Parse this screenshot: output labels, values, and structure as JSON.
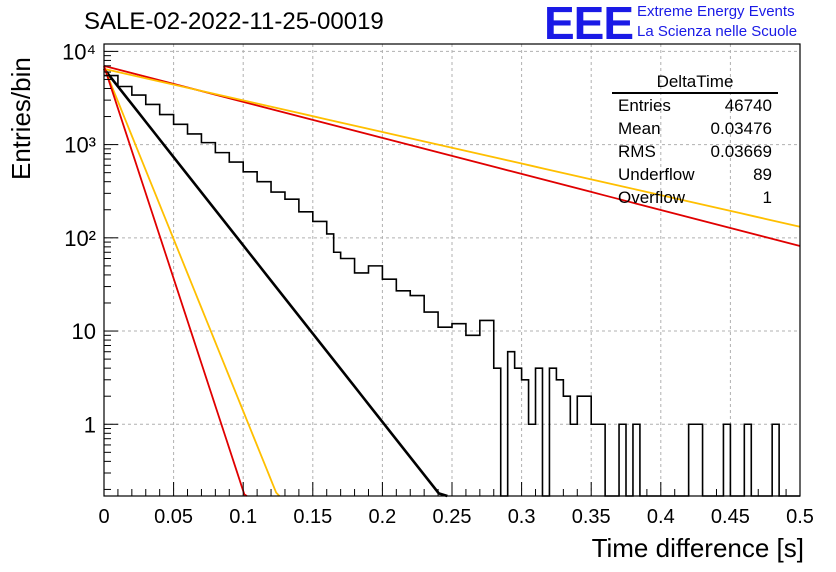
{
  "header": {
    "title": "SALE-02-2022-11-25-00019",
    "logo_text": "EEE",
    "logo_line1": "Extreme Energy Events",
    "logo_line2": "La Scienza nelle Scuole"
  },
  "stats_box": {
    "title": "DeltaTime",
    "rows": [
      {
        "label": "Entries",
        "value": "46740"
      },
      {
        "label": "Mean",
        "value": "0.03476"
      },
      {
        "label": "RMS",
        "value": "0.03669"
      },
      {
        "label": "Underflow",
        "value": "89"
      },
      {
        "label": "Overflow",
        "value": "1"
      }
    ]
  },
  "colors": {
    "histogram": "#000000",
    "fit": "#000000",
    "red_curves": "#e00000",
    "orange_curves": "#ffbf00",
    "grid": "#b0b0b0"
  },
  "chart_data": {
    "type": "line",
    "title": "SALE-02-2022-11-25-00019",
    "xlabel": "Time difference [s]",
    "ylabel": "Entries/bin",
    "xlim": [
      0,
      0.5
    ],
    "ylim": [
      0.17,
      12000
    ],
    "yscale": "log",
    "grid": true,
    "x_ticks": [
      "0",
      "0.05",
      "0.1",
      "0.15",
      "0.2",
      "0.25",
      "0.3",
      "0.35",
      "0.4",
      "0.45",
      "0.5"
    ],
    "y_ticks": [
      "1",
      "10",
      "10²",
      "10³",
      "10⁴"
    ],
    "histogram": {
      "name": "DeltaTime",
      "points": [
        [
          0.0,
          5500
        ],
        [
          0.01,
          4200
        ],
        [
          0.02,
          3400
        ],
        [
          0.03,
          2700
        ],
        [
          0.04,
          2100
        ],
        [
          0.05,
          1650
        ],
        [
          0.06,
          1300
        ],
        [
          0.07,
          1050
        ],
        [
          0.08,
          820
        ],
        [
          0.09,
          650
        ],
        [
          0.1,
          510
        ],
        [
          0.11,
          400
        ],
        [
          0.12,
          310
        ],
        [
          0.13,
          260
        ],
        [
          0.14,
          190
        ],
        [
          0.15,
          150
        ],
        [
          0.16,
          110
        ],
        [
          0.165,
          70
        ],
        [
          0.17,
          60
        ],
        [
          0.18,
          42
        ],
        [
          0.19,
          50
        ],
        [
          0.2,
          36
        ],
        [
          0.21,
          27
        ],
        [
          0.22,
          24
        ],
        [
          0.23,
          16
        ],
        [
          0.24,
          11
        ],
        [
          0.25,
          12
        ],
        [
          0.26,
          9
        ],
        [
          0.27,
          13
        ],
        [
          0.28,
          4
        ],
        [
          0.285,
          0.1
        ],
        [
          0.29,
          6
        ],
        [
          0.295,
          4
        ],
        [
          0.3,
          3
        ],
        [
          0.305,
          1
        ],
        [
          0.31,
          4
        ],
        [
          0.315,
          0.1
        ],
        [
          0.32,
          4
        ],
        [
          0.325,
          3
        ],
        [
          0.33,
          2
        ],
        [
          0.335,
          1
        ],
        [
          0.34,
          2
        ],
        [
          0.35,
          1
        ],
        [
          0.36,
          0.1
        ],
        [
          0.37,
          1
        ],
        [
          0.375,
          0.1
        ],
        [
          0.38,
          1
        ],
        [
          0.385,
          0.1
        ],
        [
          0.42,
          1
        ],
        [
          0.43,
          0.1
        ],
        [
          0.445,
          1
        ],
        [
          0.45,
          0.1
        ],
        [
          0.46,
          1
        ],
        [
          0.465,
          0.1
        ],
        [
          0.48,
          1
        ],
        [
          0.485,
          0.1
        ],
        [
          0.5,
          0.1
        ]
      ]
    },
    "fits": [
      {
        "color": "black",
        "y0": 6500,
        "slope_per_s": 43.6,
        "x_range": [
          0,
          0.37
        ]
      },
      {
        "color": "red",
        "y0": 7000,
        "slope_per_s": 8.9,
        "x_range": [
          0,
          0.5
        ]
      },
      {
        "color": "orange",
        "y0": 6500,
        "slope_per_s": 7.8,
        "x_range": [
          0,
          0.5
        ]
      },
      {
        "color": "orange",
        "y0": 6800,
        "slope_per_s": 85,
        "x_range": [
          0,
          0.14
        ]
      },
      {
        "color": "red",
        "y0": 7000,
        "slope_per_s": 105,
        "x_range": [
          0,
          0.11
        ]
      }
    ]
  }
}
